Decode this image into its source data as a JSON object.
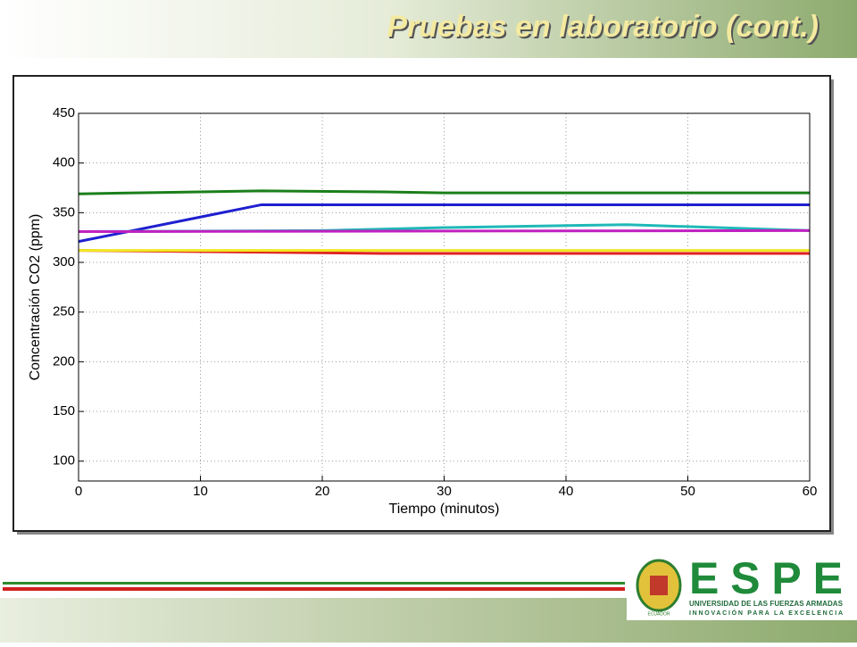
{
  "header": {
    "title": "Pruebas en laboratorio (cont.)"
  },
  "chart_data": {
    "type": "line",
    "xlabel": "Tiempo (minutos)",
    "ylabel": "Concentración CO2 (ppm)",
    "xlim": [
      0,
      60
    ],
    "xticks": [
      0,
      10,
      20,
      30,
      40,
      50,
      60
    ],
    "ylim": [
      80,
      450
    ],
    "yticks": [
      100,
      150,
      200,
      250,
      300,
      350,
      400,
      450
    ],
    "grid": true,
    "series": [
      {
        "color": "#1a7f1a",
        "x": [
          0,
          10,
          15,
          25,
          30,
          60
        ],
        "values": [
          369,
          371,
          372,
          371,
          370,
          370
        ]
      },
      {
        "color": "#1f1fd0",
        "x": [
          0,
          15,
          60
        ],
        "values": [
          321,
          358,
          358
        ]
      },
      {
        "color": "#20b8b8",
        "x": [
          0,
          20,
          30,
          45,
          60
        ],
        "values": [
          331,
          332,
          335,
          338,
          332
        ]
      },
      {
        "color": "#c020c0",
        "x": [
          0,
          60
        ],
        "values": [
          331,
          332
        ]
      },
      {
        "color": "#e02020",
        "x": [
          0,
          25,
          60
        ],
        "values": [
          312,
          309,
          309
        ]
      },
      {
        "color": "#f0e820",
        "x": [
          0,
          60
        ],
        "values": [
          312,
          312
        ]
      }
    ]
  },
  "logo": {
    "name": "ESPE",
    "line1": "UNIVERSIDAD DE LAS FUERZAS ARMADAS",
    "line2": "INNOVACIÓN PARA LA EXCELENCIA",
    "country": "ECUADOR"
  }
}
